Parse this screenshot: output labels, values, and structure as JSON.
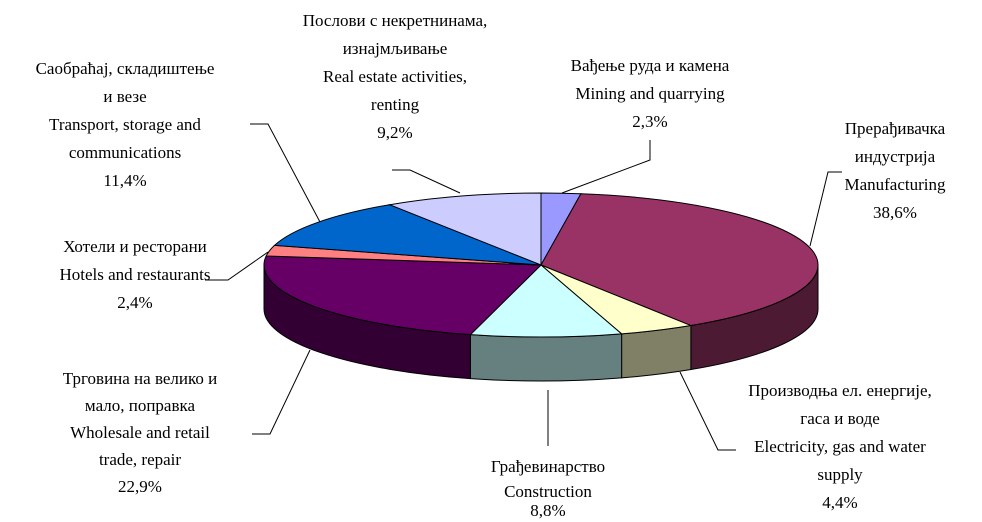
{
  "chart_data": {
    "type": "pie3d",
    "categories": [
      [
        "Вађење руда и камена",
        "Mining and quarrying"
      ],
      [
        "Прерађивачка",
        "индустрија",
        "Manufacturing"
      ],
      [
        "Производња ел. енергије,",
        "гаса и воде",
        "Electricity, gas and water",
        "supply"
      ],
      [
        "Грађевинарство",
        "Construction"
      ],
      [
        "Трговина на велико и",
        "мало, поправка",
        "Wholesale and retail",
        "trade, repair"
      ],
      [
        "Хотели и ресторани",
        "Hotels and restaurants"
      ],
      [
        "Саобраћај, складиштење",
        "и везе",
        "Transport, storage and",
        "communications"
      ],
      [
        "Послови с некретнинама,",
        "изнајмљивање",
        "Real estate activities,",
        "renting"
      ]
    ],
    "values": [
      2.3,
      38.6,
      4.4,
      8.8,
      22.9,
      2.4,
      11.4,
      9.2
    ],
    "value_labels": [
      "2,3%",
      "38,6%",
      "4,4%",
      "8,8%",
      "22,9%",
      "2,4%",
      "11,4%",
      "9,2%"
    ],
    "colors": [
      "#9999ff",
      "#993366",
      "#ffffcc",
      "#ccffff",
      "#660066",
      "#ff8080",
      "#0066cc",
      "#ccccff"
    ]
  }
}
